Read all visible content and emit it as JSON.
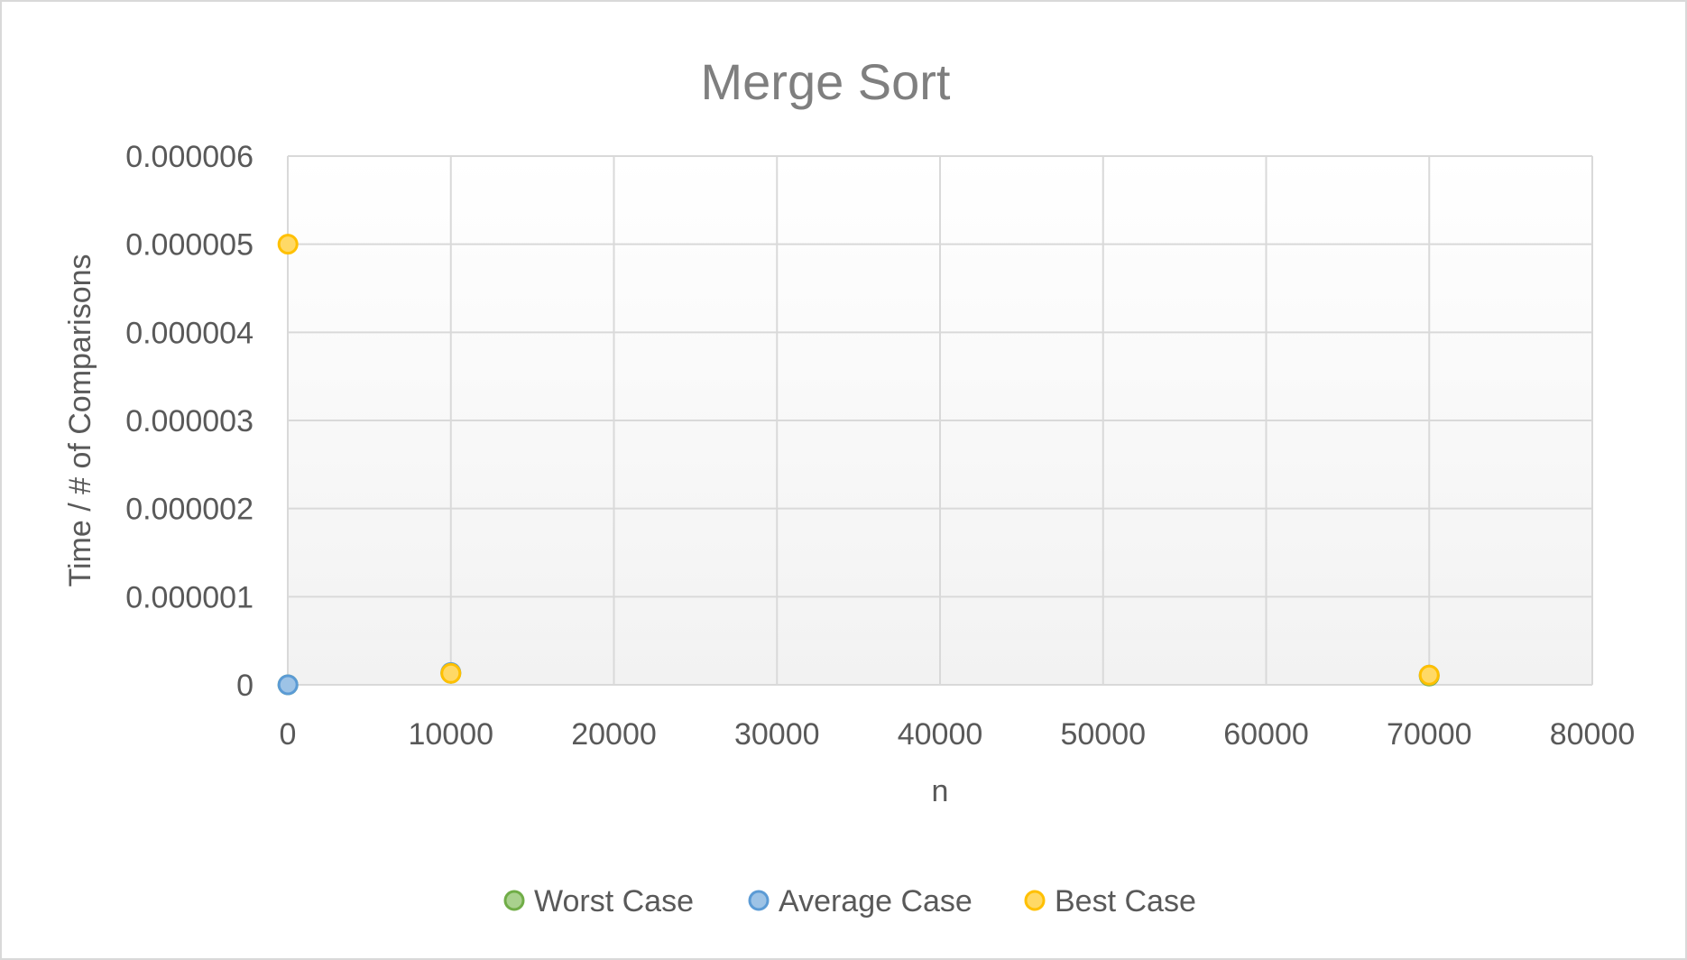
{
  "chart_data": {
    "type": "scatter",
    "title": "Merge Sort",
    "xlabel": "n",
    "ylabel": "Time / # of Comparisons",
    "xlim": [
      0,
      80000
    ],
    "ylim": [
      0,
      6e-06
    ],
    "x_ticks": [
      "0",
      "10000",
      "20000",
      "30000",
      "40000",
      "50000",
      "60000",
      "70000",
      "80000"
    ],
    "y_ticks": [
      "0",
      "0.000001",
      "0.000002",
      "0.000003",
      "0.000004",
      "0.000005",
      "0.000006"
    ],
    "grid": true,
    "legend_position": "bottom",
    "series": [
      {
        "name": "Worst Case",
        "color": "#a9d18e",
        "stroke": "#70ad47",
        "points": [
          {
            "x": 10,
            "y": 0.0
          },
          {
            "x": 10000,
            "y": 1.3e-07
          },
          {
            "x": 70000,
            "y": 1e-07
          }
        ]
      },
      {
        "name": "Average Case",
        "color": "#9dc3e6",
        "stroke": "#5b9bd5",
        "points": [
          {
            "x": 10,
            "y": 0.0
          },
          {
            "x": 10000,
            "y": 1.4e-07
          },
          {
            "x": 70000,
            "y": 1.1e-07
          }
        ]
      },
      {
        "name": "Best Case",
        "color": "#ffd966",
        "stroke": "#ffc000",
        "points": [
          {
            "x": 10,
            "y": 5e-06
          },
          {
            "x": 10000,
            "y": 1.3e-07
          },
          {
            "x": 70000,
            "y": 1.1e-07
          }
        ]
      }
    ]
  }
}
